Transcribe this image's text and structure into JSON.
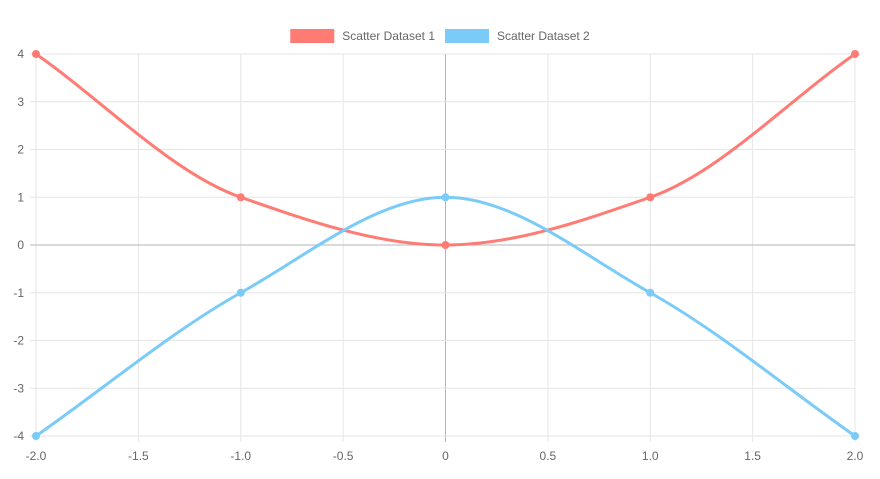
{
  "chart_data": {
    "type": "scatter",
    "title": "",
    "xlabel": "",
    "ylabel": "",
    "xlim": [
      -2,
      2
    ],
    "ylim": [
      -4,
      4
    ],
    "x_ticks": [
      -2,
      -1.5,
      -1,
      -0.5,
      0,
      0.5,
      1,
      1.5,
      2
    ],
    "x_tick_labels": [
      "-2.0",
      "-1.5",
      "-1.0",
      "-0.5",
      "0",
      "0.5",
      "1.0",
      "1.5",
      "2.0"
    ],
    "y_ticks": [
      4,
      3,
      2,
      1,
      0,
      -1,
      -2,
      -3,
      -4
    ],
    "y_tick_labels": [
      "4",
      "3",
      "2",
      "1",
      "0",
      "-1",
      "-2",
      "-3",
      "-4"
    ],
    "grid": true,
    "legend_position": "top",
    "series": [
      {
        "name": "Scatter Dataset 1",
        "color": "#ff7b73",
        "points": [
          {
            "x": -2,
            "y": 4
          },
          {
            "x": -1,
            "y": 1
          },
          {
            "x": 0,
            "y": 0
          },
          {
            "x": 1,
            "y": 1
          },
          {
            "x": 2,
            "y": 4
          }
        ]
      },
      {
        "name": "Scatter Dataset 2",
        "color": "#7bcbf9",
        "points": [
          {
            "x": -2,
            "y": -4
          },
          {
            "x": -1,
            "y": -1
          },
          {
            "x": 0,
            "y": 1
          },
          {
            "x": 1,
            "y": -1
          },
          {
            "x": 2,
            "y": -4
          }
        ]
      }
    ]
  }
}
